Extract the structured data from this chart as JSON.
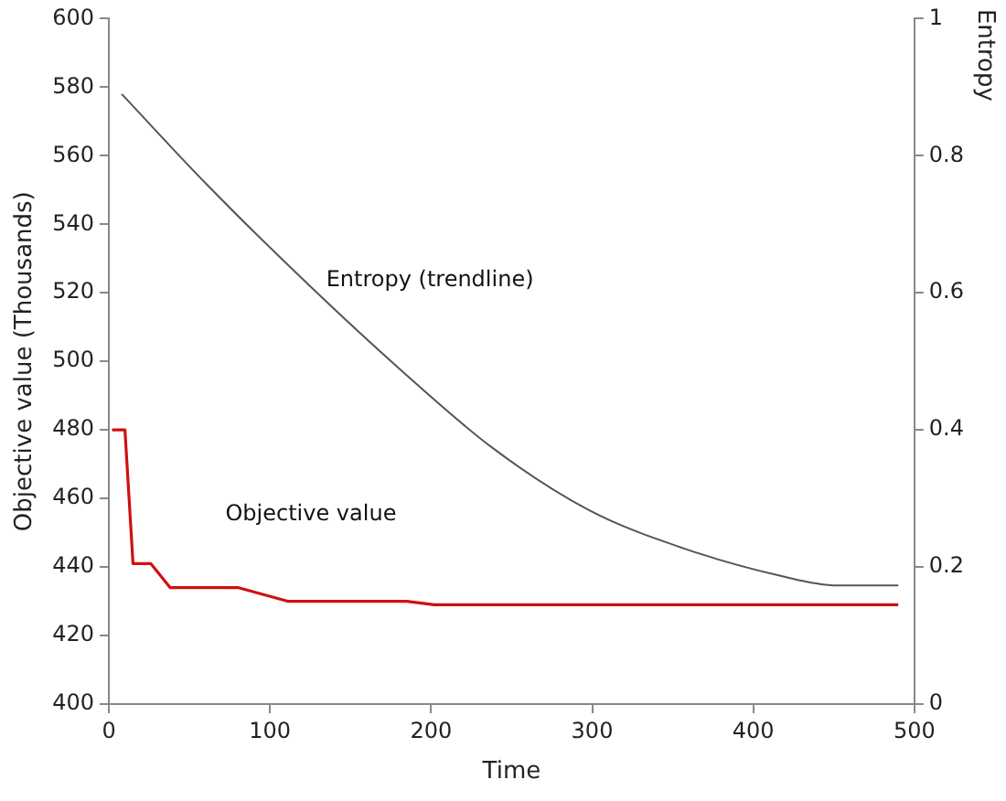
{
  "chart_data": {
    "type": "line",
    "xlabel": "Time",
    "ylabel": "Objective value (Thousands)",
    "y2label": "Entropy",
    "xlim": [
      0,
      500
    ],
    "xticks": [
      0,
      100,
      200,
      300,
      400,
      500
    ],
    "ylim": [
      400,
      600
    ],
    "yticks": [
      400,
      420,
      440,
      460,
      480,
      500,
      520,
      540,
      560,
      580,
      600
    ],
    "y2lim": [
      0,
      1
    ],
    "y2ticks": [
      0,
      0.2,
      0.4,
      0.6,
      0.8,
      1
    ],
    "grid": false,
    "legend": false,
    "marker": "none",
    "line_style": "solid",
    "series": [
      {
        "name": "Objective value",
        "color": "#d01010",
        "x": [
          2,
          10,
          15,
          26,
          38,
          80,
          111,
          185,
          202,
          490
        ],
        "values": [
          480,
          480,
          441,
          441,
          434,
          434,
          430,
          430,
          429,
          429
        ]
      },
      {
        "name": "Entropy (trendline)",
        "color": "#555555",
        "axis": "y2",
        "x": [
          8,
          60,
          119,
          180,
          238,
          298,
          357,
          417,
          452,
          490
        ],
        "values": [
          0.89,
          0.76,
          0.623,
          0.49,
          0.374,
          0.283,
          0.227,
          0.187,
          0.173,
          0.173
        ]
      }
    ]
  }
}
